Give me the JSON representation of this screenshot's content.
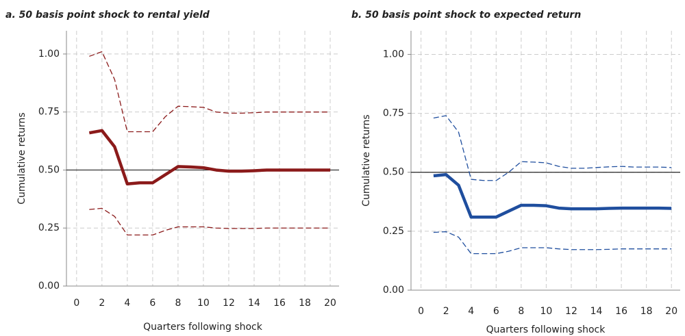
{
  "chart_data": [
    {
      "type": "line",
      "title": "a. 50 basis point shock to rental yield",
      "xlabel": "Quarters following shock",
      "ylabel": "Cumulative returns",
      "x": [
        1,
        2,
        3,
        4,
        5,
        6,
        7,
        8,
        9,
        10,
        11,
        12,
        13,
        14,
        15,
        16,
        17,
        18,
        19,
        20
      ],
      "xlim": [
        -0.8,
        20.7
      ],
      "xticks": [
        0,
        2,
        4,
        6,
        8,
        10,
        12,
        14,
        16,
        18,
        20
      ],
      "ylim": [
        0,
        1.1
      ],
      "yticks": [
        {
          "value": 0,
          "label": "0.00"
        },
        {
          "value": 0.25,
          "label": "0.25"
        },
        {
          "value": 0.5,
          "label": "0.50"
        },
        {
          "value": 0.75,
          "label": "0.75"
        },
        {
          "value": 1,
          "label": "1.00"
        }
      ],
      "grid": true,
      "hline": 0.5,
      "series": [
        {
          "color": "#8b1a1a",
          "style": "solid",
          "values": [
            0.66,
            0.67,
            0.6,
            0.44,
            0.445,
            0.445,
            0.48,
            0.515,
            0.513,
            0.51,
            0.5,
            0.495,
            0.495,
            0.497,
            0.5,
            0.5,
            0.5,
            0.5,
            0.5,
            0.5
          ]
        },
        {
          "color": "#8b1a1a",
          "style": "dashed",
          "values": [
            0.99,
            1.01,
            0.89,
            0.665,
            0.665,
            0.665,
            0.73,
            0.775,
            0.773,
            0.77,
            0.75,
            0.745,
            0.745,
            0.747,
            0.75,
            0.75,
            0.75,
            0.75,
            0.75,
            0.75
          ]
        },
        {
          "color": "#8b1a1a",
          "style": "dashed",
          "values": [
            0.33,
            0.335,
            0.3,
            0.22,
            0.22,
            0.22,
            0.24,
            0.255,
            0.255,
            0.255,
            0.25,
            0.248,
            0.248,
            0.248,
            0.25,
            0.25,
            0.25,
            0.25,
            0.25,
            0.25
          ]
        }
      ]
    },
    {
      "type": "line",
      "title": "b. 50 basis point shock to expected return",
      "xlabel": "Quarters following shock",
      "ylabel": "Cumulative returns",
      "x": [
        1,
        2,
        3,
        4,
        5,
        6,
        7,
        8,
        9,
        10,
        11,
        12,
        13,
        14,
        15,
        16,
        17,
        18,
        19,
        20
      ],
      "xlim": [
        -0.8,
        20.7
      ],
      "xticks": [
        0,
        2,
        4,
        6,
        8,
        10,
        12,
        14,
        16,
        18,
        20
      ],
      "ylim": [
        0,
        1.1
      ],
      "yticks": [
        {
          "value": 0,
          "label": "0.00"
        },
        {
          "value": 0.25,
          "label": "0.25"
        },
        {
          "value": 0.5,
          "label": "0.50"
        },
        {
          "value": 0.75,
          "label": "0.75"
        },
        {
          "value": 1,
          "label": "1.00"
        }
      ],
      "grid": true,
      "hline": 0.5,
      "series": [
        {
          "color": "#1f4e9e",
          "style": "solid",
          "values": [
            0.485,
            0.49,
            0.445,
            0.31,
            0.31,
            0.31,
            0.335,
            0.36,
            0.36,
            0.358,
            0.348,
            0.345,
            0.345,
            0.345,
            0.347,
            0.348,
            0.348,
            0.348,
            0.348,
            0.347
          ]
        },
        {
          "color": "#1f4e9e",
          "style": "dashed",
          "values": [
            0.73,
            0.74,
            0.67,
            0.47,
            0.465,
            0.465,
            0.5,
            0.545,
            0.543,
            0.54,
            0.525,
            0.517,
            0.517,
            0.52,
            0.523,
            0.525,
            0.522,
            0.522,
            0.522,
            0.52
          ]
        },
        {
          "color": "#1f4e9e",
          "style": "dashed",
          "values": [
            0.245,
            0.248,
            0.225,
            0.155,
            0.155,
            0.155,
            0.165,
            0.18,
            0.18,
            0.18,
            0.175,
            0.172,
            0.172,
            0.172,
            0.173,
            0.175,
            0.175,
            0.175,
            0.175,
            0.175
          ]
        }
      ]
    }
  ]
}
